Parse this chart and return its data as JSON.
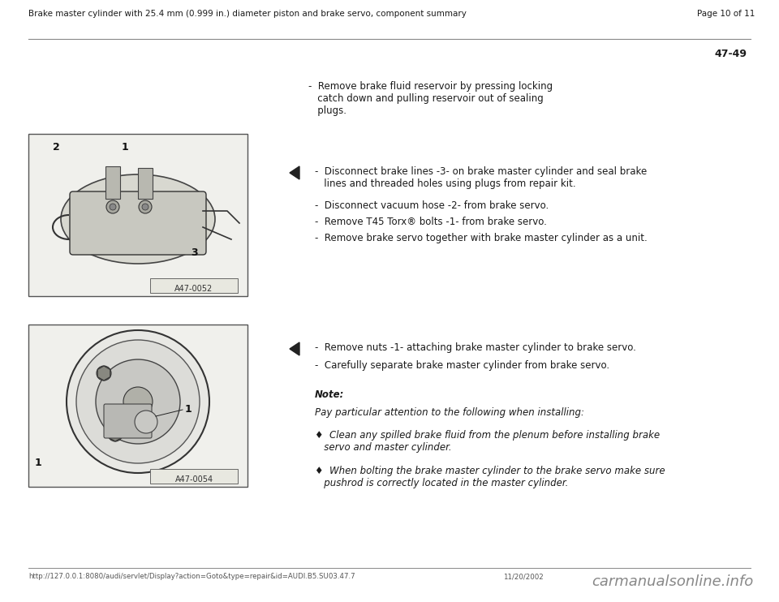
{
  "bg_color": "#ffffff",
  "header_title": "Brake master cylinder with 25.4 mm (0.999 in.) diameter piston and brake servo, component summary",
  "header_page": "Page 10 of 11",
  "page_number": "47-49",
  "section1_bullet": "-  Remove brake fluid reservoir by pressing locking\n   catch down and pulling reservoir out of sealing\n   plugs.",
  "section2_bullets": [
    "-  Disconnect brake lines -3- on brake master cylinder and seal brake\n   lines and threaded holes using plugs from repair kit.",
    "-  Disconnect vacuum hose -2- from brake servo.",
    "-  Remove T45 Torx® bolts -1- from brake servo.",
    "-  Remove brake servo together with brake master cylinder as a unit."
  ],
  "section3_bullets": [
    "-  Remove nuts -1- attaching brake master cylinder to brake servo.",
    "-  Carefully separate brake master cylinder from brake servo."
  ],
  "note_label": "Note:",
  "note_text": "Pay particular attention to the following when installing:",
  "note_bullets": [
    "♦  Clean any spilled brake fluid from the plenum before installing brake\n   servo and master cylinder.",
    "♦  When bolting the brake master cylinder to the brake servo make sure\n   pushrod is correctly located in the master cylinder."
  ],
  "footer_url": "http://127.0.0.1:8080/audi/servlet/Display?action=Goto&type=repair&id=AUDI.B5.SU03.47.7",
  "footer_date": "11/20/2002",
  "footer_logo": "carmanualsonline.info",
  "img1_label": "A47-0052",
  "img2_label": "A47-0054",
  "header_fontsize": 7.5,
  "body_fontsize": 8.5,
  "title_color": "#1a1a1a",
  "text_color": "#1a1a1a",
  "rule_color": "#888888"
}
